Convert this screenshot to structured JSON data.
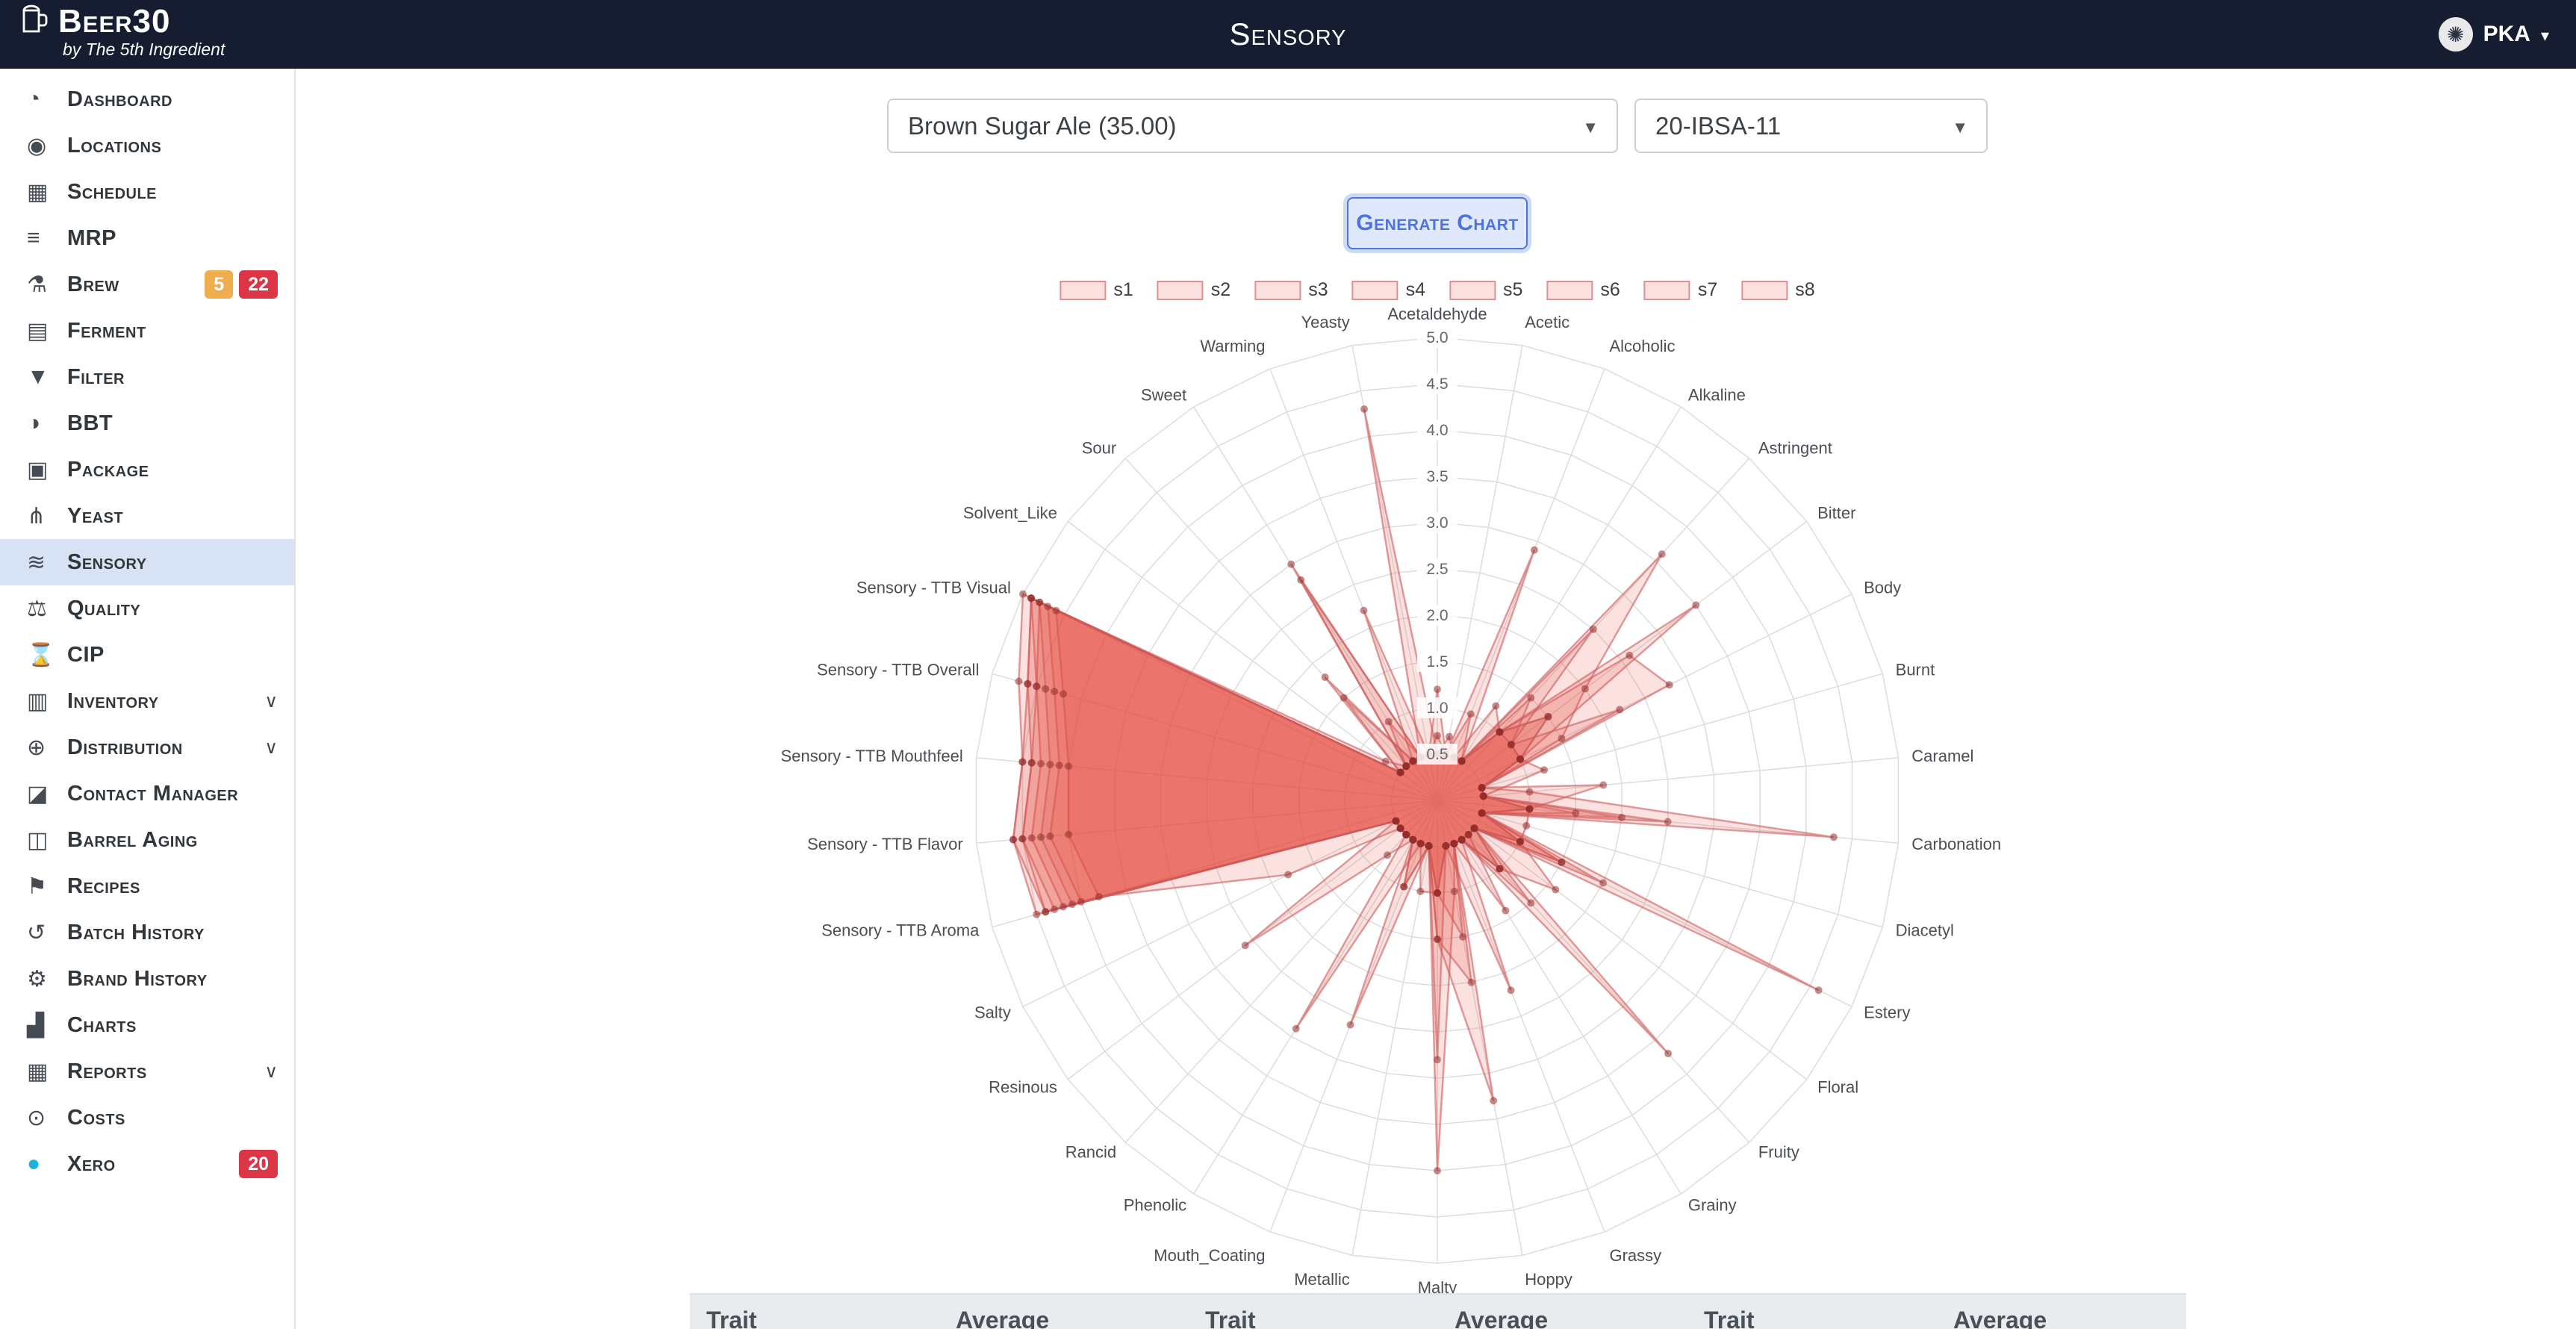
{
  "theme": {
    "topbar_bg": "#161d31",
    "accent_blue": "#4e73df",
    "active_item_bg": "#d7e2f4",
    "badge_amber": "#f0ad4e",
    "badge_red": "#dc3545",
    "series_fill": "rgba(231,76,60,0.16)",
    "series_border": "rgba(205,92,92,0.6)",
    "grid_color": "#dddddd"
  },
  "topbar": {
    "logo": "Beer30",
    "tagline": "by The 5th Ingredient",
    "page_title": "Sensory",
    "user_label": "PKA"
  },
  "sidebar": {
    "items": [
      {
        "label": "Dashboard",
        "icon": "dashboard-gauge-icon",
        "glyph": "◔"
      },
      {
        "label": "Locations",
        "icon": "location-pin-icon",
        "glyph": "◉"
      },
      {
        "label": "Schedule",
        "icon": "calendar-icon",
        "glyph": "▦"
      },
      {
        "label": "MRP",
        "icon": "list-icon",
        "glyph": "≡"
      },
      {
        "label": "Brew",
        "icon": "flask-icon",
        "glyph": "⚗",
        "badges": [
          {
            "text": "5",
            "color": "#f0ad4e"
          },
          {
            "text": "22",
            "color": "#dc3545"
          }
        ]
      },
      {
        "label": "Ferment",
        "icon": "layers-icon",
        "glyph": "▤"
      },
      {
        "label": "Filter",
        "icon": "funnel-icon",
        "glyph": "▼"
      },
      {
        "label": "BBT",
        "icon": "tank-half-circle-icon",
        "glyph": "◑"
      },
      {
        "label": "Package",
        "icon": "package-box-icon",
        "glyph": "▣"
      },
      {
        "label": "Yeast",
        "icon": "sitemap-icon",
        "glyph": "⋔"
      },
      {
        "label": "Sensory",
        "icon": "sliders-icon",
        "glyph": "≋",
        "active": true
      },
      {
        "label": "Quality",
        "icon": "scales-icon",
        "glyph": "⚖"
      },
      {
        "label": "CIP",
        "icon": "hourglass-icon",
        "glyph": "⌛"
      },
      {
        "label": "Inventory",
        "icon": "inventory-table-icon",
        "glyph": "▥",
        "chevron": true
      },
      {
        "label": "Distribution",
        "icon": "globe-icon",
        "glyph": "⊕",
        "chevron": true
      },
      {
        "label": "Contact Manager",
        "icon": "contact-card-icon",
        "glyph": "◪"
      },
      {
        "label": "Barrel Aging",
        "icon": "barrel-icon",
        "glyph": "◫"
      },
      {
        "label": "Recipes",
        "icon": "bookmark-icon",
        "glyph": "⚑"
      },
      {
        "label": "Batch History",
        "icon": "history-clock-icon",
        "glyph": "↺"
      },
      {
        "label": "Brand History",
        "icon": "gears-icon",
        "glyph": "⚙"
      },
      {
        "label": "Charts",
        "icon": "bar-chart-icon",
        "glyph": "▟"
      },
      {
        "label": "Reports",
        "icon": "report-table-icon",
        "glyph": "▦",
        "chevron": true
      },
      {
        "label": "Costs",
        "icon": "costs-coin-icon",
        "glyph": "⊙"
      },
      {
        "label": "Xero",
        "icon": "xero-logo-icon",
        "glyph": "●",
        "glyph_color": "#1ab4d7",
        "badges": [
          {
            "text": "20",
            "color": "#dc3545"
          }
        ]
      }
    ]
  },
  "controls": {
    "brand_select_value": "Brown Sugar Ale (35.00)",
    "batch_select_value": "20-IBSA-11",
    "generate_button_label": "Generate Chart"
  },
  "chart_data": {
    "type": "radar",
    "title": "",
    "min": 0,
    "max": 5,
    "ticks": [
      0.5,
      1.0,
      1.5,
      2.0,
      2.5,
      3.0,
      3.5,
      4.0,
      4.5,
      5.0
    ],
    "legend_position": "top",
    "grid": true,
    "categories": [
      "Acetaldehyde",
      "Acetic",
      "Alcoholic",
      "Alkaline",
      "Astringent",
      "Bitter",
      "Body",
      "Burnt",
      "Caramel",
      "Carbonation",
      "Diacetyl",
      "Estery",
      "Floral",
      "Fruity",
      "Grainy",
      "Grassy",
      "Hoppy",
      "Malty",
      "Metallic",
      "Mouth_Coating",
      "Phenolic",
      "Rancid",
      "Resinous",
      "Salty",
      "Sensory - TTB Aroma",
      "Sensory - TTB Flavor",
      "Sensory - TTB Mouthfeel",
      "Sensory - TTB Overall",
      "Sensory - TTB Visual",
      "Solvent_Like",
      "Sour",
      "Sweet",
      "Warming",
      "Yeasty"
    ],
    "series": [
      {
        "name": "s1",
        "values": [
          0.5,
          0.5,
          1.0,
          0.5,
          3.6,
          2.0,
          1.5,
          0.5,
          1.0,
          4.3,
          0.5,
          1.5,
          0.5,
          1.0,
          0.5,
          0.5,
          3.3,
          1.5,
          0.5,
          1.0,
          0.5,
          0.5,
          0.5,
          0.5,
          4.5,
          4.6,
          4.5,
          4.6,
          4.9,
          0.5,
          0.5,
          1.0,
          0.5,
          0.5
        ]
      },
      {
        "name": "s2",
        "values": [
          0.7,
          0.5,
          2.9,
          0.5,
          1.0,
          3.5,
          1.0,
          0.5,
          0.5,
          2.0,
          0.5,
          4.6,
          0.5,
          0.5,
          0.5,
          0.5,
          1.0,
          4.0,
          0.5,
          0.5,
          0.5,
          0.5,
          0.5,
          0.5,
          4.2,
          4.4,
          4.3,
          4.5,
          4.8,
          0.5,
          0.5,
          0.5,
          0.5,
          0.5
        ]
      },
      {
        "name": "s3",
        "values": [
          0.5,
          0.5,
          0.5,
          1.2,
          1.0,
          2.6,
          2.8,
          0.5,
          0.5,
          1.5,
          0.5,
          1.0,
          0.5,
          3.7,
          0.5,
          0.5,
          0.5,
          1.0,
          0.5,
          0.5,
          2.9,
          0.5,
          0.5,
          0.5,
          4.0,
          4.2,
          4.1,
          4.3,
          4.7,
          0.5,
          0.5,
          3.0,
          0.5,
          0.5
        ]
      },
      {
        "name": "s4",
        "values": [
          0.5,
          0.5,
          0.5,
          0.5,
          2.5,
          1.0,
          1.0,
          1.2,
          0.5,
          1.0,
          0.5,
          1.5,
          0.5,
          0.5,
          1.4,
          0.5,
          0.5,
          2.8,
          0.5,
          2.6,
          0.5,
          0.5,
          0.5,
          1.8,
          3.8,
          4.0,
          4.0,
          4.2,
          4.6,
          0.5,
          1.8,
          0.5,
          2.2,
          0.5
        ]
      },
      {
        "name": "s5",
        "values": [
          0.5,
          0.5,
          0.5,
          0.5,
          1.0,
          1.5,
          1.0,
          0.5,
          1.8,
          1.0,
          1.0,
          1.0,
          1.6,
          1.0,
          0.5,
          2.2,
          0.5,
          1.0,
          0.5,
          0.5,
          0.5,
          0.8,
          2.6,
          0.5,
          4.4,
          4.5,
          4.4,
          4.6,
          4.9,
          0.5,
          0.5,
          0.5,
          0.5,
          4.3
        ]
      },
      {
        "name": "s6",
        "values": [
          0.5,
          0.5,
          0.5,
          0.5,
          1.0,
          1.0,
          2.2,
          0.5,
          0.5,
          1.0,
          0.5,
          2.0,
          0.5,
          1.5,
          0.5,
          0.5,
          1.5,
          1.0,
          1.0,
          0.5,
          0.5,
          0.5,
          0.5,
          0.5,
          4.1,
          4.3,
          4.2,
          4.4,
          4.8,
          0.7,
          0.5,
          0.5,
          0.5,
          0.5
        ]
      },
      {
        "name": "s7",
        "values": [
          1.2,
          0.5,
          0.5,
          0.5,
          1.5,
          1.0,
          1.0,
          0.5,
          0.5,
          2.5,
          0.5,
          1.0,
          0.5,
          1.0,
          0.5,
          0.5,
          2.0,
          1.5,
          0.5,
          1.0,
          0.5,
          0.5,
          0.5,
          0.5,
          4.3,
          4.5,
          4.4,
          4.5,
          4.9,
          0.5,
          0.5,
          2.8,
          0.5,
          0.5
        ]
      },
      {
        "name": "s8",
        "values": [
          0.5,
          0.7,
          0.5,
          0.5,
          1.0,
          1.5,
          1.0,
          0.5,
          0.5,
          1.0,
          0.5,
          1.0,
          0.5,
          0.5,
          0.5,
          0.5,
          0.5,
          1.0,
          0.5,
          0.5,
          0.5,
          0.5,
          0.5,
          0.5,
          4.4,
          4.6,
          4.5,
          4.7,
          5.0,
          0.5,
          1.5,
          0.5,
          0.5,
          0.5
        ]
      }
    ]
  },
  "table": {
    "headers": [
      "Trait",
      "Average",
      "Trait",
      "Average",
      "Trait",
      "Average"
    ]
  }
}
